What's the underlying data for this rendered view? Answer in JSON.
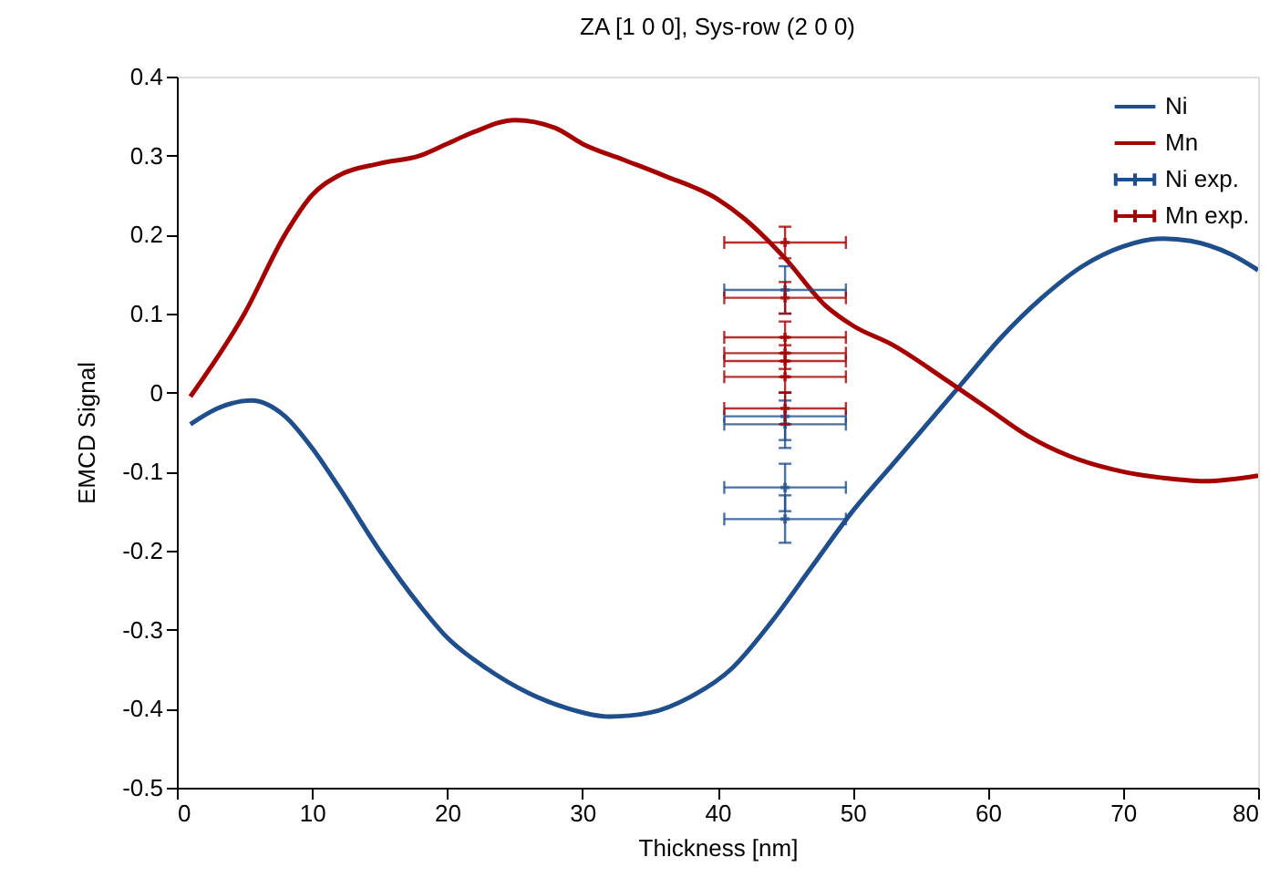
{
  "chart_data": {
    "type": "line",
    "title": "ZA [1 0 0], Sys-row (2 0 0)",
    "xlabel": "Thickness [nm]",
    "ylabel": "EMCD Signal",
    "xlim": [
      0,
      80
    ],
    "xticks": [
      0,
      10,
      20,
      30,
      40,
      50,
      60,
      70,
      80
    ],
    "ylim": [
      -0.5,
      0.4
    ],
    "yticks": [
      -0.5,
      -0.4,
      -0.3,
      -0.2,
      -0.1,
      0,
      0.1,
      0.2,
      0.3,
      0.4
    ],
    "grid": false,
    "legend": "top right",
    "line_style": "solid",
    "series": [
      {
        "name": "Ni",
        "color": "#1f4e8c",
        "x": [
          1,
          3,
          5.5,
          8,
          10,
          12,
          15,
          18,
          20,
          23,
          26,
          29,
          32,
          35,
          38,
          41,
          44,
          47,
          50,
          53,
          56,
          58,
          61,
          64,
          67,
          70,
          73,
          75,
          78,
          80
        ],
        "values": [
          -0.04,
          -0.02,
          -0.01,
          -0.03,
          -0.07,
          -0.12,
          -0.2,
          -0.27,
          -0.31,
          -0.35,
          -0.38,
          -0.4,
          -0.41,
          -0.405,
          -0.385,
          -0.35,
          -0.29,
          -0.22,
          -0.15,
          -0.09,
          -0.03,
          0.01,
          0.07,
          0.12,
          0.16,
          0.185,
          0.195,
          0.192,
          0.175,
          0.155
        ]
      },
      {
        "name": "Mn",
        "color": "#a50000",
        "x": [
          1,
          5,
          8,
          10,
          12,
          15,
          18,
          20,
          22,
          25,
          28,
          30,
          33,
          36,
          40,
          42,
          45,
          48,
          50,
          53,
          57,
          60,
          63,
          66,
          70,
          73,
          76,
          80
        ],
        "values": [
          -0.005,
          0.1,
          0.2,
          0.25,
          0.275,
          0.29,
          0.3,
          0.315,
          0.33,
          0.345,
          0.335,
          0.315,
          0.295,
          0.275,
          0.245,
          0.22,
          0.17,
          0.11,
          0.085,
          0.06,
          0.015,
          -0.02,
          -0.055,
          -0.08,
          -0.1,
          -0.108,
          -0.112,
          -0.105
        ]
      },
      {
        "name": "Ni exp.",
        "type": "scatter",
        "marker": "cross",
        "color": "#1f4e8c",
        "x": [
          45,
          45,
          45,
          45,
          45
        ],
        "values": [
          0.13,
          -0.03,
          -0.04,
          -0.12,
          -0.16
        ],
        "errors": [
          0.03,
          0.03,
          0.03,
          0.03,
          0.03
        ],
        "xerrors": [
          4.5,
          4.5,
          4.5,
          4.5,
          4.5
        ]
      },
      {
        "name": "Mn exp.",
        "type": "scatter",
        "marker": "cross",
        "color": "#a50000",
        "x": [
          45,
          45,
          45,
          45,
          45,
          45,
          45
        ],
        "values": [
          0.19,
          0.12,
          0.07,
          0.05,
          0.04,
          0.02,
          -0.02
        ],
        "errors": [
          0.02,
          0.02,
          0.02,
          0.02,
          0.02,
          0.02,
          0.02
        ],
        "xerrors": [
          4.5,
          4.5,
          4.5,
          4.5,
          4.5,
          4.5,
          4.5
        ]
      }
    ]
  }
}
